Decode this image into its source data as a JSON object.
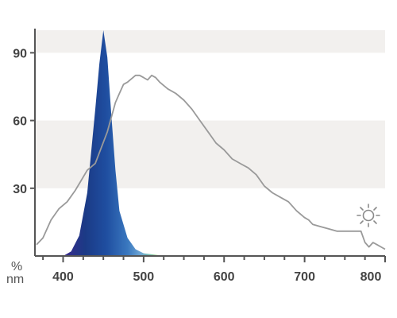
{
  "chart_data": {
    "type": "area",
    "title": "",
    "xlabel": "nm",
    "ylabel": "%",
    "xlim": [
      365,
      800
    ],
    "ylim": [
      0,
      100
    ],
    "x_ticks": [
      400,
      500,
      600,
      700,
      800
    ],
    "y_ticks": [
      30,
      60,
      90
    ],
    "grid": "alternating horizontal bands",
    "series": [
      {
        "style": "filled spectral area",
        "color": "#1f4e9c",
        "points": [
          [
            400,
            0
          ],
          [
            410,
            2
          ],
          [
            420,
            9
          ],
          [
            430,
            28
          ],
          [
            440,
            65
          ],
          [
            445,
            85
          ],
          [
            450,
            100
          ],
          [
            455,
            88
          ],
          [
            460,
            62
          ],
          [
            465,
            38
          ],
          [
            470,
            20
          ],
          [
            480,
            8
          ],
          [
            490,
            3
          ],
          [
            500,
            1.2
          ],
          [
            520,
            0.3
          ],
          [
            540,
            0
          ],
          [
            800,
            0
          ]
        ]
      },
      {
        "style": "line",
        "color": "#9a9a9a",
        "points": [
          [
            367,
            5
          ],
          [
            375,
            8
          ],
          [
            385,
            16
          ],
          [
            395,
            21
          ],
          [
            405,
            24
          ],
          [
            415,
            29
          ],
          [
            420,
            32
          ],
          [
            430,
            38
          ],
          [
            440,
            41
          ],
          [
            455,
            55
          ],
          [
            465,
            68
          ],
          [
            470,
            72
          ],
          [
            475,
            76
          ],
          [
            480,
            77
          ],
          [
            490,
            80
          ],
          [
            495,
            80
          ],
          [
            500,
            79
          ],
          [
            505,
            78
          ],
          [
            510,
            80
          ],
          [
            515,
            79
          ],
          [
            520,
            77
          ],
          [
            530,
            74
          ],
          [
            540,
            72
          ],
          [
            550,
            69
          ],
          [
            560,
            65
          ],
          [
            570,
            60
          ],
          [
            580,
            55
          ],
          [
            590,
            50
          ],
          [
            600,
            47
          ],
          [
            610,
            43
          ],
          [
            620,
            41
          ],
          [
            630,
            39
          ],
          [
            640,
            36
          ],
          [
            650,
            31
          ],
          [
            660,
            28
          ],
          [
            670,
            26
          ],
          [
            680,
            24
          ],
          [
            690,
            20
          ],
          [
            700,
            17
          ],
          [
            705,
            16
          ],
          [
            710,
            14
          ],
          [
            720,
            13
          ],
          [
            730,
            12
          ],
          [
            740,
            11
          ],
          [
            750,
            11
          ],
          [
            760,
            11
          ],
          [
            770,
            11
          ],
          [
            775,
            6
          ],
          [
            780,
            4
          ],
          [
            785,
            6
          ],
          [
            790,
            5
          ],
          [
            795,
            4
          ],
          [
            800,
            3
          ]
        ]
      }
    ],
    "icons": {
      "sun": "sun-icon"
    }
  }
}
